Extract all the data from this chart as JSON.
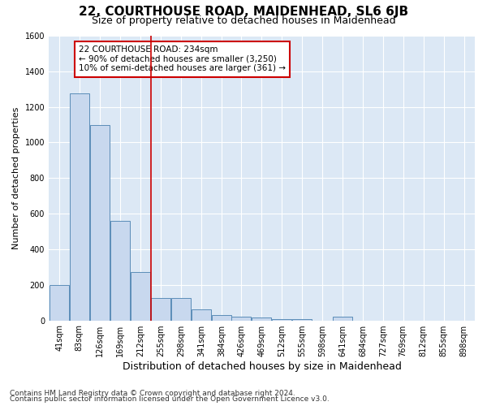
{
  "title": "22, COURTHOUSE ROAD, MAIDENHEAD, SL6 6JB",
  "subtitle": "Size of property relative to detached houses in Maidenhead",
  "xlabel": "Distribution of detached houses by size in Maidenhead",
  "ylabel": "Number of detached properties",
  "footnote1": "Contains HM Land Registry data © Crown copyright and database right 2024.",
  "footnote2": "Contains public sector information licensed under the Open Government Licence v3.0.",
  "annotation_line1": "22 COURTHOUSE ROAD: 234sqm",
  "annotation_line2": "← 90% of detached houses are smaller (3,250)",
  "annotation_line3": "10% of semi-detached houses are larger (361) →",
  "bins": [
    41,
    83,
    126,
    169,
    212,
    255,
    298,
    341,
    384,
    426,
    469,
    512,
    555,
    598,
    641,
    684,
    727,
    769,
    812,
    855,
    898
  ],
  "counts": [
    200,
    1275,
    1100,
    560,
    270,
    125,
    125,
    60,
    30,
    20,
    15,
    5,
    5,
    0,
    20,
    0,
    0,
    0,
    0,
    0,
    0
  ],
  "bin_width": 42,
  "bar_color": "#c8d8ee",
  "bar_edge_color": "#5b8db8",
  "vline_x": 234,
  "vline_color": "#cc0000",
  "ylim": [
    0,
    1600
  ],
  "yticks": [
    0,
    200,
    400,
    600,
    800,
    1000,
    1200,
    1400,
    1600
  ],
  "plot_bg_color": "#dce8f5",
  "fig_bg_color": "#ffffff",
  "grid_color": "#ffffff",
  "annotation_box_facecolor": "#ffffff",
  "annotation_box_edgecolor": "#cc0000",
  "title_fontsize": 11,
  "subtitle_fontsize": 9,
  "ylabel_fontsize": 8,
  "xlabel_fontsize": 9,
  "tick_fontsize": 7,
  "footnote_fontsize": 6.5
}
